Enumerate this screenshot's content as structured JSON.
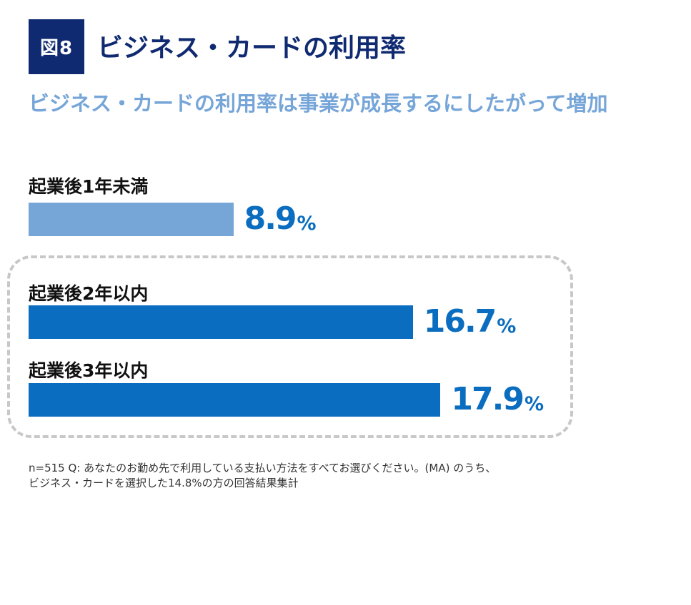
{
  "figure": {
    "badge": "図8",
    "title": "ビジネス・カードの利用率",
    "subtitle": "ビジネス・カードの利用率は事業が成長するにしたがって増加"
  },
  "chart_data": {
    "type": "bar",
    "orientation": "horizontal",
    "title": "ビジネス・カードの利用率",
    "subtitle": "ビジネス・カードの利用率は事業が成長するにしたがって増加",
    "categories": [
      "起業後1年未満",
      "起業後2年以内",
      "起業後3年以内"
    ],
    "values": [
      8.9,
      16.7,
      17.9
    ],
    "value_labels": [
      "8.9",
      "16.7",
      "17.9"
    ],
    "unit": "%",
    "xlim": [
      0,
      25
    ],
    "grid": false,
    "highlighted_categories": [
      "起業後2年以内",
      "起業後3年以内"
    ],
    "colors": [
      "#76a5d8",
      "#0a6dbf",
      "#0a6dbf"
    ]
  },
  "notes": {
    "line1": "n=515 Q: あなたのお勤め先で利用している支払い方法をすべてお選びください。(MA) のうち、",
    "line2": "ビジネス・カードを選択した14.8%の方の回答結果集計"
  },
  "colors": {
    "navy": "#102a72",
    "light_blue": "#76a5d8",
    "blue": "#0a6dbf",
    "dashed_border": "#c8c8c8"
  }
}
